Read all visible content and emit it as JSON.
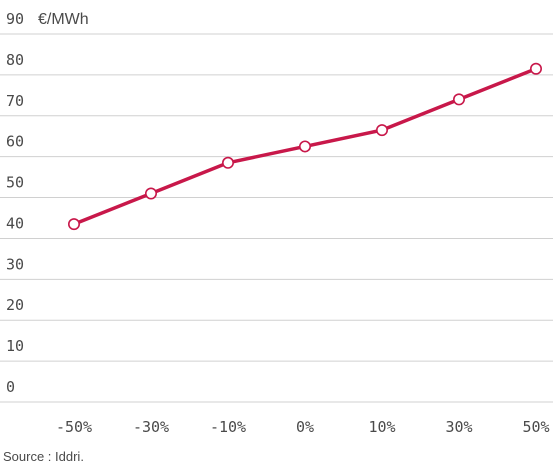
{
  "chart_data": {
    "type": "line",
    "unit": "€/MWh",
    "categories": [
      "-50%",
      "-30%",
      "-10%",
      "0%",
      "10%",
      "30%",
      "50%"
    ],
    "series": [
      {
        "values": [
          43.5,
          51,
          58.5,
          62.5,
          66.5,
          74,
          81.5
        ]
      }
    ],
    "ylim": [
      0,
      90
    ],
    "yticks": [
      "0",
      "10",
      "20",
      "30",
      "40",
      "50",
      "60",
      "70",
      "80",
      "90"
    ],
    "grid": true,
    "colors": {
      "series": "#c8184a",
      "grid": "#d0d0d0",
      "text": "#4a4a4a"
    }
  },
  "source": "Source : Iddri."
}
